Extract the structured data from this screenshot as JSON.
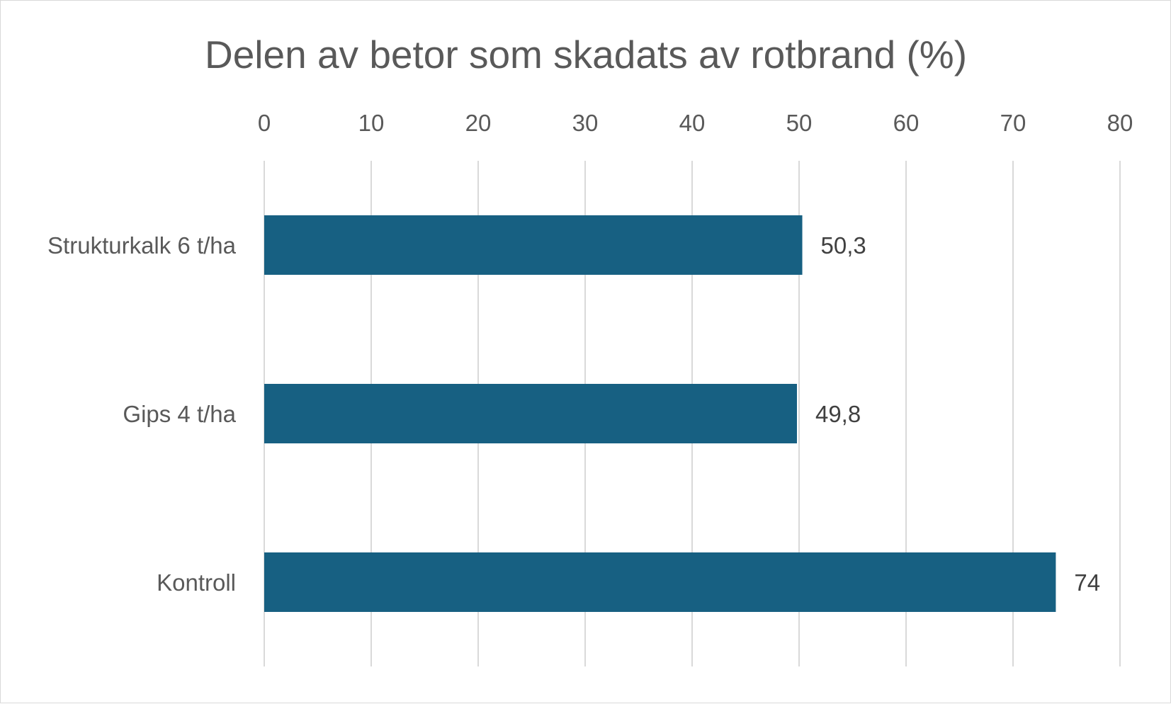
{
  "chart_data": {
    "type": "bar",
    "orientation": "horizontal",
    "title": "Delen av betor som skadats av rotbrand (%)",
    "xlabel": "",
    "ylabel": "",
    "categories": [
      "Strukturkalk 6 t/ha",
      "Gips 4 t/ha",
      "Kontroll"
    ],
    "values": [
      50.3,
      49.8,
      74
    ],
    "value_labels": [
      "50,3",
      "49,8",
      "74"
    ],
    "xlim": [
      0,
      80
    ],
    "xticks": [
      0,
      10,
      20,
      30,
      40,
      50,
      60,
      70,
      80
    ],
    "xaxis_position": "top",
    "grid": true,
    "legend": false,
    "bar_color": "#176082"
  }
}
